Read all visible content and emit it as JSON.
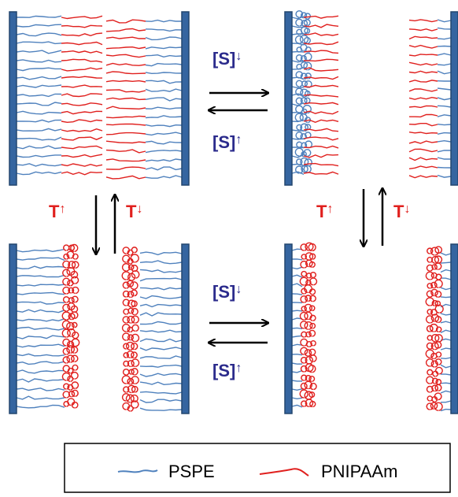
{
  "labels": [
    {
      "text": "[S]",
      "arrow": "↓"
    },
    {
      "text": "[S]",
      "arrow": "↑"
    },
    {
      "text": "T",
      "arrow": "↑"
    },
    {
      "text": "T",
      "arrow": "↓"
    },
    {
      "text": "T",
      "arrow": "↑"
    },
    {
      "text": "T",
      "arrow": "↓"
    },
    {
      "text": "[S]",
      "arrow": "↓"
    },
    {
      "text": "[S]",
      "arrow": "↑"
    }
  ],
  "legend": [
    "PSPE",
    "PNIPAAm"
  ]
}
